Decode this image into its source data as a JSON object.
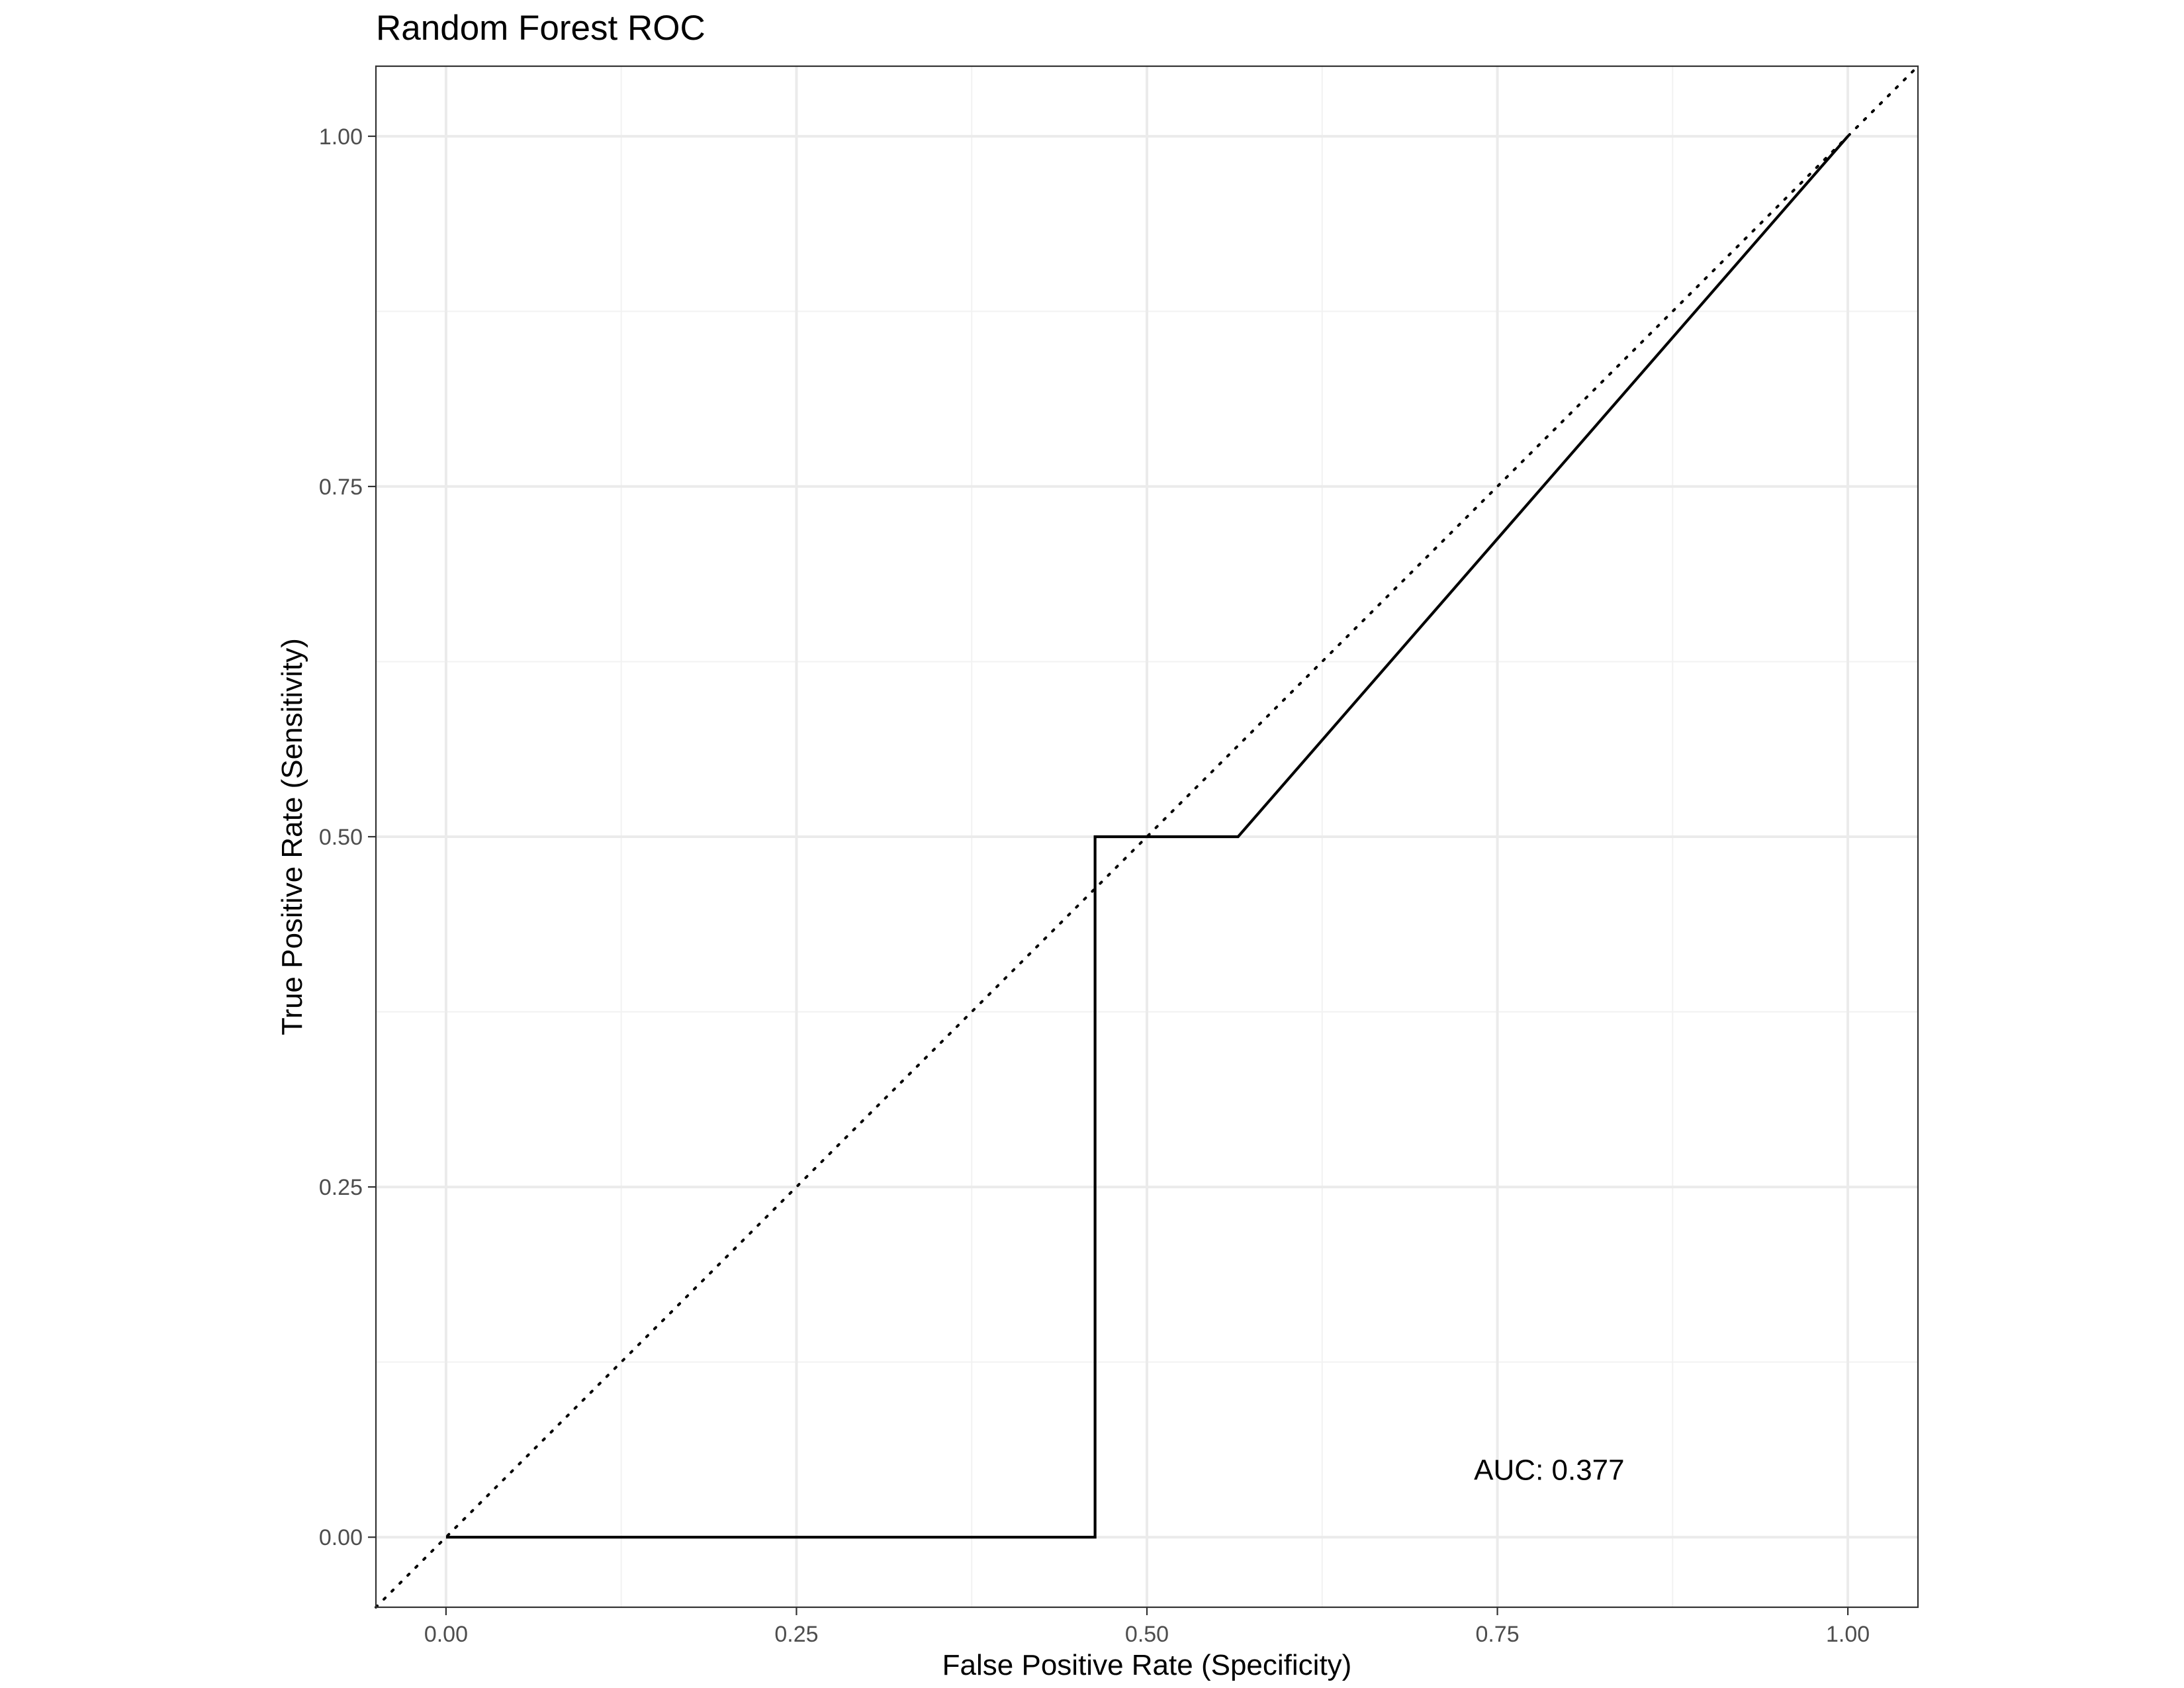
{
  "chart_data": {
    "type": "line",
    "title": "Random Forest ROC",
    "xlabel": "False Positive Rate (Specificity)",
    "ylabel": "True Positive Rate (Sensitivity)",
    "xlim": [
      -0.05,
      1.05
    ],
    "ylim": [
      -0.05,
      1.05
    ],
    "x_ticks": [
      0,
      0.25,
      0.5,
      0.75,
      1
    ],
    "x_tick_labels": [
      "0.00",
      "0.25",
      "0.50",
      "0.75",
      "1.00"
    ],
    "y_ticks": [
      0,
      0.25,
      0.5,
      0.75,
      1
    ],
    "y_tick_labels": [
      "0.00",
      "0.25",
      "0.50",
      "0.75",
      "1.00"
    ],
    "grid": true,
    "series": [
      {
        "x": [
          0,
          0.463,
          0.463,
          0.565,
          1
        ],
        "y": [
          0,
          0,
          0.5,
          0.5,
          1
        ],
        "color": "#000000",
        "style": "solid"
      }
    ],
    "reference_line": {
      "x": [
        -0.05,
        1.05
      ],
      "y": [
        -0.05,
        1.05
      ],
      "color": "#000000",
      "style": "dotted"
    },
    "annotation": {
      "text": "AUC: 0.377",
      "x": 0.787,
      "y": 0.048
    },
    "colors": {
      "panel_border": "#333333",
      "grid_major": "#ebebeb",
      "grid_minor": "#f2f2f2",
      "tick_text": "#4d4d4d"
    }
  }
}
